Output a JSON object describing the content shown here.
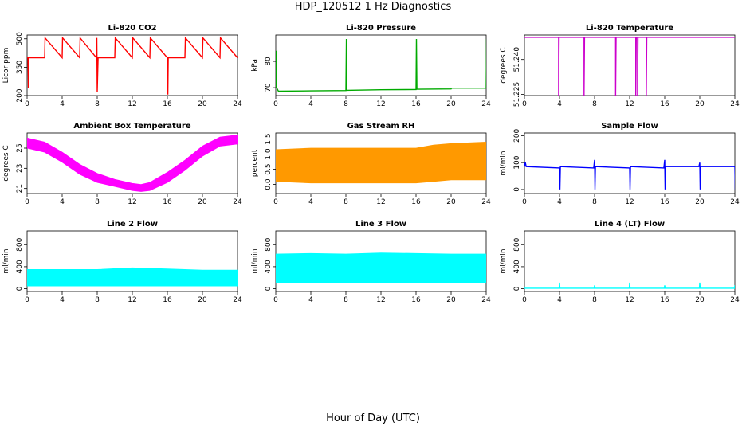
{
  "title": "HDP_120512  1 Hz Diagnostics",
  "xlabel": "Hour of Day (UTC)",
  "chart_data": [
    {
      "type": "line",
      "title": "Li-820 CO2",
      "ylabel": "Licor ppm",
      "color": "#ff0000",
      "xlim": [
        0,
        24
      ],
      "ylim": [
        200,
        520
      ],
      "xticks": [
        "0",
        "4",
        "8",
        "12",
        "16",
        "20",
        "24"
      ],
      "yticks": [
        "200",
        "350",
        "500"
      ],
      "x": [
        0,
        0.1,
        0.15,
        0.2,
        2,
        2.05,
        4,
        4.05,
        6,
        6.05,
        7.9,
        7.95,
        8.0,
        8.1,
        10,
        10.05,
        12,
        12.05,
        14,
        14.05,
        16,
        16.05,
        16.1,
        18,
        18.05,
        20,
        20.05,
        22,
        22.05,
        24
      ],
      "y": [
        400,
        400,
        240,
        400,
        400,
        505,
        400,
        505,
        400,
        505,
        400,
        505,
        220,
        400,
        400,
        505,
        400,
        505,
        400,
        505,
        400,
        205,
        400,
        400,
        505,
        400,
        505,
        400,
        505,
        400
      ]
    },
    {
      "type": "line",
      "title": "Li-820 Pressure",
      "ylabel": "kPa",
      "color": "#00aa00",
      "xlim": [
        0,
        24
      ],
      "ylim": [
        67,
        90
      ],
      "xticks": [
        "0",
        "4",
        "8",
        "12",
        "16",
        "20",
        "24"
      ],
      "yticks": [
        "70",
        "80"
      ],
      "x": [
        0,
        0.05,
        0.1,
        0.3,
        4,
        8,
        8.05,
        8.1,
        12,
        16,
        16.05,
        16.1,
        20,
        20.05,
        24,
        24.05
      ],
      "y": [
        70,
        84,
        70,
        68.7,
        68.8,
        68.9,
        88.5,
        69,
        69.2,
        69.3,
        88.5,
        69.4,
        69.5,
        69.8,
        69.8,
        88.5
      ]
    },
    {
      "type": "line",
      "title": "Li-820 Temperature",
      "ylabel": "degrees C",
      "color": "#cc00cc",
      "xlim": [
        0,
        24
      ],
      "ylim": [
        51.2245,
        51.2505
      ],
      "xticks": [
        "0",
        "4",
        "8",
        "12",
        "16",
        "20",
        "24"
      ],
      "yticks": [
        "51.225",
        "51.240"
      ],
      "x": [
        0,
        3.9,
        3.9,
        3.95,
        6.8,
        6.8,
        6.85,
        10.4,
        10.4,
        10.45,
        12.7,
        12.7,
        12.75,
        12.9,
        12.9,
        12.95,
        13.9,
        13.9,
        13.95,
        24
      ],
      "y": [
        51.2495,
        51.2495,
        51.2245,
        51.2495,
        51.2495,
        51.2245,
        51.2495,
        51.2495,
        51.2245,
        51.2495,
        51.2495,
        51.2245,
        51.2495,
        51.2495,
        51.2245,
        51.2495,
        51.2495,
        51.2245,
        51.2495,
        51.2495
      ]
    },
    {
      "type": "area",
      "title": "Ambient Box Temperature",
      "ylabel": "degrees C",
      "color": "#ff00ff",
      "xlim": [
        0,
        24
      ],
      "ylim": [
        20.5,
        26.5
      ],
      "xticks": [
        "0",
        "4",
        "8",
        "12",
        "16",
        "20",
        "24"
      ],
      "yticks": [
        "21",
        "23",
        "25"
      ],
      "x": [
        0,
        2,
        4,
        6,
        8,
        10,
        12,
        13,
        14,
        16,
        18,
        20,
        22,
        24
      ],
      "ymin": [
        25.0,
        24.6,
        23.6,
        22.4,
        21.6,
        21.2,
        20.8,
        20.7,
        20.8,
        21.6,
        22.8,
        24.2,
        25.2,
        25.4
      ],
      "ymax": [
        26.0,
        25.6,
        24.6,
        23.4,
        22.5,
        21.9,
        21.5,
        21.4,
        21.6,
        22.6,
        23.8,
        25.2,
        26.1,
        26.3
      ]
    },
    {
      "type": "area",
      "title": "Gas Stream RH",
      "ylabel": "percent",
      "color": "#ff9900",
      "xlim": [
        0,
        24
      ],
      "ylim": [
        -0.3,
        1.7
      ],
      "xticks": [
        "0",
        "4",
        "8",
        "12",
        "16",
        "20",
        "24"
      ],
      "yticks": [
        "0.0",
        "0.5",
        "1.0",
        "1.5"
      ],
      "x": [
        0,
        4,
        8,
        12,
        16,
        18,
        20,
        24
      ],
      "ymin": [
        0.1,
        0.05,
        0.05,
        0.05,
        0.05,
        0.1,
        0.15,
        0.15
      ],
      "ymax": [
        1.15,
        1.2,
        1.2,
        1.2,
        1.2,
        1.3,
        1.35,
        1.4
      ]
    },
    {
      "type": "line",
      "title": "Sample Flow",
      "ylabel": "ml/min",
      "color": "#0000ff",
      "xlim": [
        0,
        24
      ],
      "ylim": [
        -15,
        210
      ],
      "xticks": [
        "0",
        "4",
        "8",
        "12",
        "16",
        "20",
        "24"
      ],
      "yticks": [
        "0",
        "100",
        "200"
      ],
      "x": [
        0,
        0.1,
        0.2,
        4,
        4.05,
        4.1,
        7.9,
        8.0,
        8.05,
        8.1,
        12,
        12.05,
        12.1,
        15.9,
        16.0,
        16.05,
        16.1,
        19.9,
        20.0,
        20.05,
        20.1,
        24,
        24.05
      ],
      "y": [
        85,
        100,
        85,
        80,
        0,
        85,
        80,
        110,
        0,
        85,
        80,
        0,
        85,
        80,
        110,
        0,
        85,
        85,
        100,
        0,
        85,
        85,
        0
      ]
    },
    {
      "type": "area",
      "title": "Line 2 Flow",
      "ylabel": "ml/min",
      "color": "#00ffff",
      "xlim": [
        0,
        24
      ],
      "ylim": [
        -50,
        1050
      ],
      "xticks": [
        "0",
        "4",
        "8",
        "12",
        "16",
        "20",
        "24"
      ],
      "yticks": [
        "0",
        "400",
        "800"
      ],
      "x": [
        0,
        4,
        8,
        12,
        16,
        20,
        24
      ],
      "ymin": [
        50,
        50,
        50,
        50,
        50,
        50,
        50
      ],
      "ymax": [
        350,
        350,
        350,
        380,
        360,
        340,
        340
      ]
    },
    {
      "type": "area",
      "title": "Line 3 Flow",
      "ylabel": "ml/min",
      "color": "#00ffff",
      "xlim": [
        0,
        24
      ],
      "ylim": [
        -50,
        1050
      ],
      "xticks": [
        "0",
        "4",
        "8",
        "12",
        "16",
        "20",
        "24"
      ],
      "yticks": [
        "0",
        "400",
        "800"
      ],
      "x": [
        0,
        4,
        8,
        12,
        16,
        20,
        24
      ],
      "ymin": [
        100,
        100,
        100,
        100,
        100,
        100,
        100
      ],
      "ymax": [
        630,
        640,
        630,
        650,
        640,
        630,
        630
      ]
    },
    {
      "type": "line",
      "title": "Line 4 (LT) Flow",
      "ylabel": "ml/min",
      "color": "#00ffff",
      "xlim": [
        0,
        24
      ],
      "ylim": [
        -50,
        1050
      ],
      "xticks": [
        "0",
        "4",
        "8",
        "12",
        "16",
        "20",
        "24"
      ],
      "yticks": [
        "0",
        "400",
        "800"
      ],
      "x": [
        0,
        3.95,
        4.0,
        4.05,
        7.95,
        8.0,
        8.05,
        11.95,
        12.0,
        12.05,
        15.95,
        16.0,
        16.05,
        19.95,
        20.0,
        20.05,
        23.95,
        24.0,
        24.05
      ],
      "y": [
        10,
        10,
        110,
        10,
        10,
        60,
        10,
        10,
        110,
        10,
        10,
        60,
        10,
        10,
        110,
        10,
        10,
        60,
        10
      ]
    }
  ]
}
